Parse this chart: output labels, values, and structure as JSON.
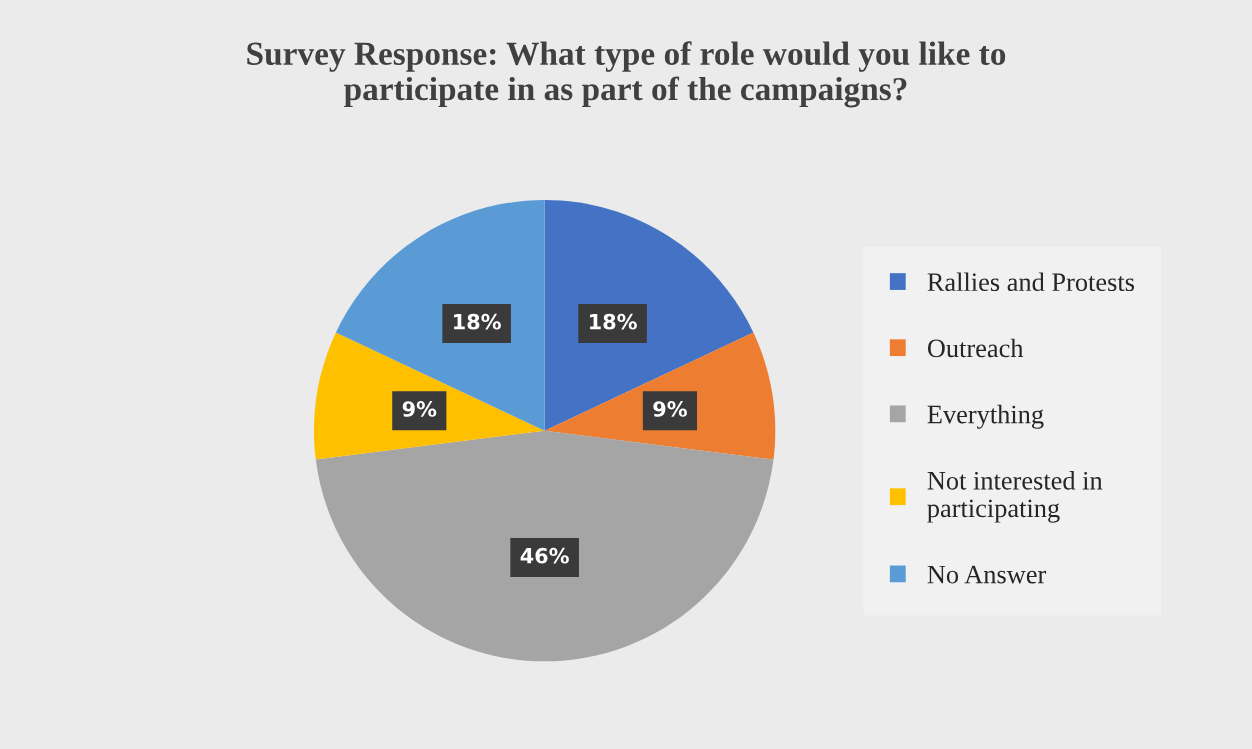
{
  "chart_data": {
    "type": "pie",
    "title": "Survey Response: What type of role would you like to\nparticipate in as part of the campaigns?",
    "categories": [
      "Rallies and Protests",
      "Outreach",
      "Everything",
      "Not interested in\nparticipating",
      "No Answer"
    ],
    "values": [
      18,
      9,
      46,
      9,
      18
    ],
    "colors": [
      "#4472c4",
      "#ed7d31",
      "#a5a5a5",
      "#ffc000",
      "#5b9bd5"
    ],
    "value_labels": [
      "18%",
      "9%",
      "46%",
      "9%",
      "18%"
    ],
    "legend": "right"
  }
}
